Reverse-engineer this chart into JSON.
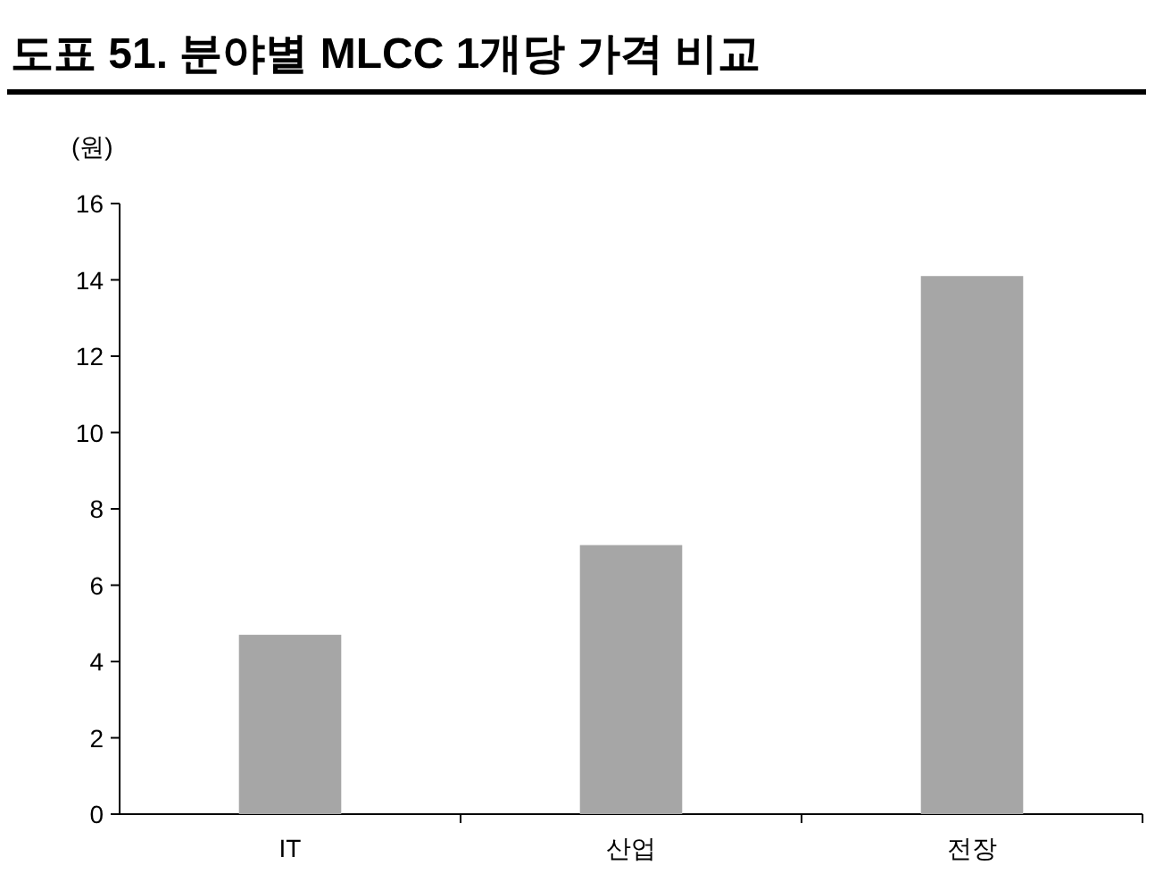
{
  "chart_data": {
    "type": "bar",
    "title": "도표 51. 분야별 MLCC 1개당 가격 비교",
    "ylabel": "(원)",
    "categories": [
      "IT",
      "산업",
      "전장"
    ],
    "values": [
      4.7,
      7.05,
      14.1
    ],
    "color": "#a6a6a6",
    "ylim": [
      0,
      16
    ],
    "yticks": [
      0,
      2,
      4,
      6,
      8,
      10,
      12,
      14,
      16
    ]
  }
}
